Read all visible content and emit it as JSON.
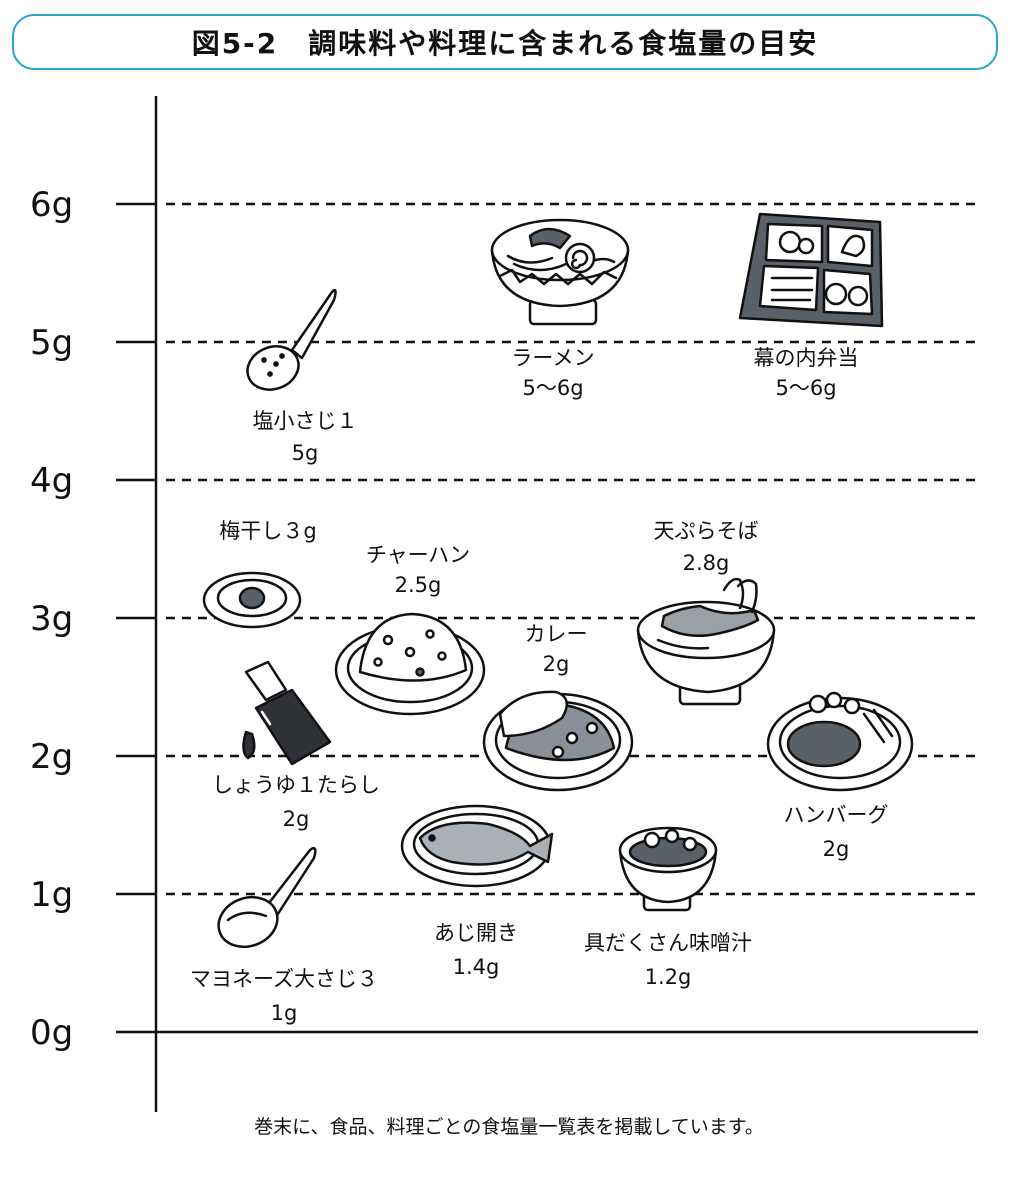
{
  "title": "図5-2　調味料や料理に含まれる食塩量の目安",
  "footnote": "巻末に、食品、料理ごとの食塩量一覧表を掲載しています。",
  "chart_data": {
    "type": "scatter",
    "title": "図5-2　調味料や料理に含まれる食塩量の目安",
    "ylim": [
      0,
      6
    ],
    "yticks": [
      "0g",
      "1g",
      "2g",
      "3g",
      "4g",
      "5g",
      "6g"
    ],
    "grid": true,
    "items": [
      {
        "name": "塩小さじ１",
        "value_label": "5g",
        "value": 5,
        "icon": "spoon-icon"
      },
      {
        "name": "ラーメン",
        "value_label": "5〜6g",
        "value": [
          5,
          6
        ],
        "icon": "ramen-bowl-icon"
      },
      {
        "name": "幕の内弁当",
        "value_label": "5〜6g",
        "value": [
          5,
          6
        ],
        "icon": "bento-box-icon"
      },
      {
        "name": "梅干し３g",
        "value_label": "",
        "value": 3,
        "icon": "umeboshi-plate-icon"
      },
      {
        "name": "チャーハン",
        "value_label": "2.5g",
        "value": 2.5,
        "icon": "fried-rice-plate-icon"
      },
      {
        "name": "天ぷらそば",
        "value_label": "2.8g",
        "value": 2.8,
        "icon": "tempura-soba-bowl-icon"
      },
      {
        "name": "カレー",
        "value_label": "2g",
        "value": 2,
        "icon": "curry-plate-icon"
      },
      {
        "name": "しょうゆ１たらし",
        "value_label": "2g",
        "value": 2,
        "icon": "soy-sauce-bottle-icon"
      },
      {
        "name": "ハンバーグ",
        "value_label": "2g",
        "value": 2,
        "icon": "hamburg-steak-plate-icon"
      },
      {
        "name": "あじ開き",
        "value_label": "1.4g",
        "value": 1.4,
        "icon": "grilled-fish-plate-icon"
      },
      {
        "name": "具だくさん味噌汁",
        "value_label": "1.2g",
        "value": 1.2,
        "icon": "miso-soup-bowl-icon"
      },
      {
        "name": "マヨネーズ大さじ３",
        "value_label": "1g",
        "value": 1,
        "icon": "spoon-icon"
      }
    ]
  }
}
